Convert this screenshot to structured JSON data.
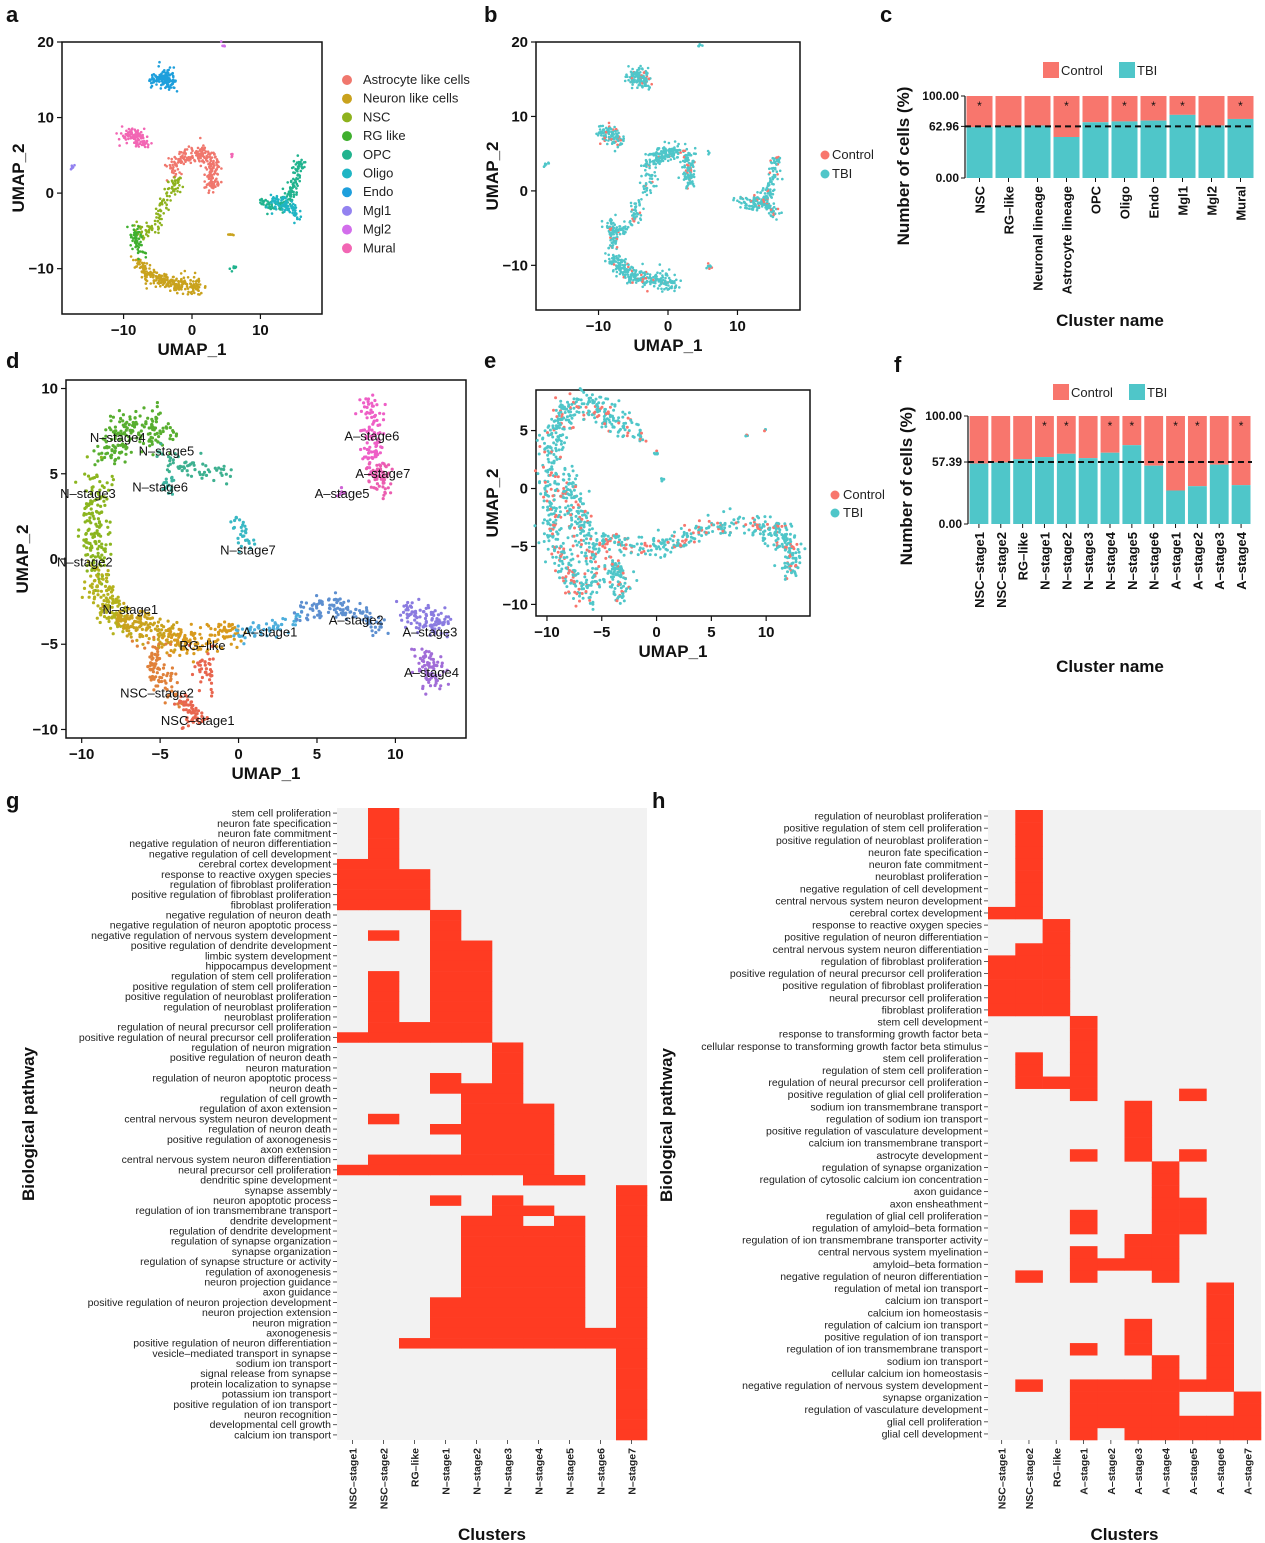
{
  "colors": {
    "control": "#F8766D",
    "tbi": "#4FC6C9",
    "heat_on": "#FF3B22",
    "heat_bg": "#F2F2F2",
    "ab_clusters": {
      "Astrocyte like cells": "#F0776D",
      "Neuron like cells": "#C9A21D",
      "NSC": "#8EB21D",
      "RG like": "#3FAF2E",
      "OPC": "#21B38E",
      "Oligo": "#1FB5C4",
      "Endo": "#1E9FDC",
      "Mgl1": "#9382F0",
      "Mgl2": "#D26DEB",
      "Mural": "#F266B4"
    },
    "d_clusters": {
      "N-stage1": "#C9A21D",
      "N-stage2": "#B5B21E",
      "N-stage3": "#8BB51F",
      "N-stage4": "#57AE2F",
      "N-stage5": "#3DB090",
      "N-stage6": "#3EB4A0",
      "N-stage7": "#39B8C4",
      "RG-like": "#D89A1E",
      "NSC-stage1": "#E8664F",
      "NSC-stage2": "#E0813A",
      "A-stage1": "#4DAEDC",
      "A-stage2": "#5D8FD0",
      "A-stage3": "#8A7BE0",
      "A-stage4": "#A16DD8",
      "A-stage5": "#CF63D6",
      "A-stage6": "#EE5FC6",
      "A-stage7": "#EB5DB0"
    }
  },
  "panel_labels": [
    "a",
    "b",
    "c",
    "d",
    "e",
    "f",
    "g",
    "h"
  ],
  "chart_data": [
    {
      "id": "a",
      "type": "scatter",
      "xlabel": "UMAP_1",
      "ylabel": "UMAP_2",
      "xlim": [
        -19,
        19
      ],
      "ylim": [
        -16,
        20
      ],
      "xticks": [
        "−10",
        "0",
        "10"
      ],
      "xtick_values": [
        -10,
        0,
        10
      ],
      "yticks": [
        "20",
        "10",
        "0",
        "−10"
      ],
      "ytick_values": [
        20,
        10,
        0,
        -10
      ],
      "legend": [
        "Astrocyte like cells",
        "Neuron like cells",
        "NSC",
        "RG like",
        "OPC",
        "Oligo",
        "Endo",
        "Mgl1",
        "Mgl2",
        "Mural"
      ]
    },
    {
      "id": "b",
      "type": "scatter",
      "xlabel": "UMAP_1",
      "ylabel": "UMAP_2",
      "xlim": [
        -19,
        19
      ],
      "ylim": [
        -16,
        20
      ],
      "xticks": [
        "−10",
        "0",
        "10"
      ],
      "xtick_values": [
        -10,
        0,
        10
      ],
      "yticks": [
        "20",
        "10",
        "0",
        "−10"
      ],
      "ytick_values": [
        20,
        10,
        0,
        -10
      ],
      "legend": [
        "Control",
        "TBI"
      ]
    },
    {
      "id": "c",
      "type": "bar",
      "stacked": true,
      "xlabel": "Cluster name",
      "ylabel": "Number of cells (%)",
      "ylim": [
        0,
        100
      ],
      "yticks": [
        "100.00",
        "62.96",
        "0.00"
      ],
      "ytick_values": [
        100,
        62.96,
        0
      ],
      "reference_line": 62.96,
      "legend": [
        "Control",
        "TBI"
      ],
      "categories": [
        "NSC",
        "RG–like",
        "Neuronal lineage",
        "Astrocyte lineage",
        "OPC",
        "Oligo",
        "Endo",
        "Mgl1",
        "Mgl2",
        "Mural"
      ],
      "series": [
        {
          "name": "TBI",
          "values": [
            62,
            63,
            64,
            50,
            68,
            69,
            70,
            77,
            64,
            72
          ]
        },
        {
          "name": "Control",
          "values": [
            38,
            37,
            36,
            50,
            32,
            31,
            30,
            23,
            36,
            28
          ]
        }
      ],
      "significant": [
        true,
        false,
        false,
        true,
        false,
        true,
        true,
        true,
        false,
        true
      ]
    },
    {
      "id": "d",
      "type": "scatter",
      "xlabel": "UMAP_1",
      "ylabel": "UMAP_2",
      "xlim": [
        -11,
        14.5
      ],
      "ylim": [
        -10.5,
        10.5
      ],
      "xticks": [
        "−10",
        "−5",
        "0",
        "5",
        "10"
      ],
      "xtick_values": [
        -10,
        -5,
        0,
        5,
        10
      ],
      "yticks": [
        "10",
        "5",
        "0",
        "−5",
        "−10"
      ],
      "ytick_values": [
        10,
        5,
        0,
        -5,
        -10
      ],
      "cluster_labels": [
        "N–stage4",
        "N–stage5",
        "N–stage6",
        "N–stage3",
        "N–stage2",
        "N–stage7",
        "N–stage1",
        "RG–like",
        "NSC–stage2",
        "NSC–stage1",
        "A–stage1",
        "A–stage2",
        "A–stage3",
        "A–stage4",
        "A–stage5",
        "A–stage6",
        "A–stage7"
      ]
    },
    {
      "id": "e",
      "type": "scatter",
      "xlabel": "UMAP_1",
      "ylabel": "UMAP_2",
      "xlim": [
        -11,
        14
      ],
      "ylim": [
        -11,
        8.5
      ],
      "xticks": [
        "−10",
        "−5",
        "0",
        "5",
        "10"
      ],
      "xtick_values": [
        -10,
        -5,
        0,
        5,
        10
      ],
      "yticks": [
        "5",
        "0",
        "−5",
        "−10"
      ],
      "ytick_values": [
        5,
        0,
        -5,
        -10
      ],
      "legend": [
        "Control",
        "TBI"
      ]
    },
    {
      "id": "f",
      "type": "bar",
      "stacked": true,
      "xlabel": "Cluster name",
      "ylabel": "Number of cells (%)",
      "ylim": [
        0,
        100
      ],
      "yticks": [
        "100.00",
        "57.39",
        "0.00"
      ],
      "ytick_values": [
        100,
        57.39,
        0
      ],
      "reference_line": 57.39,
      "legend": [
        "Control",
        "TBI"
      ],
      "categories": [
        "NSC–stage1",
        "NSC–stage2",
        "RG–like",
        "N–stage1",
        "N–stage2",
        "N–stage3",
        "N–stage4",
        "N–stage5",
        "N–stage6",
        "A–stage1",
        "A–stage2",
        "A–stage3",
        "A–stage4"
      ],
      "series": [
        {
          "name": "TBI",
          "values": [
            56,
            57,
            60,
            62,
            65,
            61,
            66,
            73,
            54,
            31,
            35,
            55,
            36
          ]
        },
        {
          "name": "Control",
          "values": [
            44,
            43,
            40,
            38,
            35,
            39,
            34,
            27,
            46,
            69,
            65,
            45,
            64
          ]
        }
      ],
      "significant": [
        false,
        false,
        false,
        true,
        true,
        false,
        true,
        true,
        false,
        true,
        true,
        false,
        true
      ]
    },
    {
      "id": "g",
      "type": "heatmap",
      "xlabel": "Clusters",
      "ylabel": "Biological pathway",
      "columns": [
        "NSC–stage1",
        "NSC–stage2",
        "RG–like",
        "N–stage1",
        "N–stage2",
        "N–stage3",
        "N–stage4",
        "N–stage5",
        "N–stage6",
        "N–stage7"
      ],
      "rows": [
        "stem cell proliferation",
        "neuron fate specification",
        "neuron fate commitment",
        "negative regulation of neuron differentiation",
        "negative regulation of cell development",
        "cerebral cortex development",
        "response to reactive oxygen species",
        "regulation of fibroblast proliferation",
        "positive regulation of fibroblast proliferation",
        "fibroblast proliferation",
        "negative regulation of neuron death",
        "negative regulation of neuron apoptotic process",
        "negative regulation of nervous system development",
        "positive regulation of dendrite development",
        "limbic system development",
        "hippocampus development",
        "regulation of stem cell proliferation",
        "positive regulation of stem cell proliferation",
        "positive regulation of neuroblast proliferation",
        "regulation of neuroblast proliferation",
        "neuroblast proliferation",
        "regulation of neural precursor cell proliferation",
        "positive regulation of neural precursor cell proliferation",
        "regulation of neuron migration",
        "positive regulation of neuron death",
        "neuron maturation",
        "regulation of neuron apoptotic process",
        "neuron death",
        "regulation of cell growth",
        "regulation of axon extension",
        "central nervous system neuron development",
        "regulation of neuron death",
        "positive regulation of axonogenesis",
        "axon extension",
        "central nervous system neuron differentiation",
        "neural precursor cell proliferation",
        "dendritic spine development",
        "synapse assembly",
        "neuron apoptotic process",
        "regulation of ion transmembrane transport",
        "dendrite development",
        "regulation of dendrite development",
        "regulation of synapse organization",
        "synapse organization",
        "regulation of synapse structure or activity",
        "regulation of axonogenesis",
        "neuron projection guidance",
        "axon guidance",
        "positive regulation of neuron projection development",
        "neuron projection extension",
        "neuron migration",
        "axonogenesis",
        "positive regulation of neuron differentiation",
        "vesicle–mediated transport in synapse",
        "sodium ion transport",
        "signal release from synapse",
        "protein localization to synapse",
        "potassium ion transport",
        "positive regulation of ion transport",
        "neuron recognition",
        "developmental cell growth",
        "calcium ion transport"
      ],
      "active": [
        [
          1
        ],
        [
          1
        ],
        [
          1
        ],
        [
          1
        ],
        [
          1
        ],
        [
          0,
          1
        ],
        [
          0,
          1,
          2
        ],
        [
          0,
          1,
          2
        ],
        [
          0,
          1,
          2
        ],
        [
          0,
          1,
          2
        ],
        [
          3
        ],
        [
          3
        ],
        [
          1,
          3
        ],
        [
          3,
          4
        ],
        [
          3,
          4
        ],
        [
          3,
          4
        ],
        [
          1,
          3,
          4
        ],
        [
          1,
          3,
          4
        ],
        [
          1,
          3,
          4
        ],
        [
          1,
          3,
          4
        ],
        [
          1,
          3,
          4
        ],
        [
          1,
          2,
          3,
          4
        ],
        [
          0,
          1,
          2,
          3,
          4
        ],
        [
          5
        ],
        [
          5
        ],
        [
          5
        ],
        [
          3,
          5
        ],
        [
          3,
          4,
          5
        ],
        [
          4,
          5
        ],
        [
          4,
          5,
          6
        ],
        [
          1,
          4,
          5,
          6
        ],
        [
          3,
          4,
          5,
          6
        ],
        [
          4,
          5,
          6
        ],
        [
          4,
          5,
          6
        ],
        [
          1,
          2,
          3,
          4,
          5,
          6
        ],
        [
          0,
          1,
          2,
          3,
          4,
          5,
          6
        ],
        [
          6,
          7
        ],
        [
          9
        ],
        [
          3,
          5,
          9
        ],
        [
          5,
          6,
          9
        ],
        [
          4,
          5,
          7,
          9
        ],
        [
          4,
          5,
          6,
          7,
          9
        ],
        [
          4,
          5,
          6,
          7,
          9
        ],
        [
          4,
          5,
          6,
          7,
          9
        ],
        [
          4,
          5,
          6,
          7,
          9
        ],
        [
          4,
          5,
          6,
          7,
          9
        ],
        [
          4,
          5,
          6,
          7,
          9
        ],
        [
          4,
          5,
          6,
          7,
          9
        ],
        [
          3,
          4,
          5,
          6,
          7,
          9
        ],
        [
          3,
          4,
          5,
          6,
          7,
          9
        ],
        [
          3,
          4,
          5,
          6,
          7,
          9
        ],
        [
          3,
          4,
          5,
          6,
          7,
          8,
          9
        ],
        [
          2,
          3,
          4,
          5,
          6,
          7,
          8,
          9
        ],
        [
          9
        ],
        [
          9
        ],
        [
          9
        ],
        [
          9
        ],
        [
          9
        ],
        [
          9
        ],
        [
          9
        ],
        [
          9
        ],
        [
          9
        ]
      ]
    },
    {
      "id": "h",
      "type": "heatmap",
      "xlabel": "Clusters",
      "ylabel": "Biological pathway",
      "columns": [
        "NSC–stage1",
        "NSC–stage2",
        "RG–like",
        "A–stage1",
        "A–stage2",
        "A–stage3",
        "A–stage4",
        "A–stage5",
        "A–stage6",
        "A–stage7"
      ],
      "rows": [
        "regulation of neuroblast proliferation",
        "positive regulation of stem cell proliferation",
        "positive regulation of neuroblast proliferation",
        "neuron fate specification",
        "neuron fate commitment",
        "neuroblast proliferation",
        "negative regulation of cell development",
        "central nervous system neuron development",
        "cerebral cortex development",
        "response to reactive oxygen species",
        "positive regulation of neuron differentiation",
        "central nervous system neuron differentiation",
        "regulation of fibroblast proliferation",
        "positive regulation of neural precursor cell proliferation",
        "positive regulation of fibroblast proliferation",
        "neural precursor cell proliferation",
        "fibroblast proliferation",
        "stem cell development",
        "response to transforming growth factor beta",
        "cellular response to transforming growth factor beta stimulus",
        "stem cell proliferation",
        "regulation of stem cell proliferation",
        "regulation of neural precursor cell proliferation",
        "positive regulation of glial cell proliferation",
        "sodium ion transmembrane transport",
        "regulation of sodium ion transport",
        "positive regulation of vasculature development",
        "calcium ion transmembrane transport",
        "astrocyte development",
        "regulation of synapse organization",
        "regulation of cytosolic calcium ion concentration",
        "axon guidance",
        "axon ensheathment",
        "regulation of glial cell proliferation",
        "regulation of amyloid–beta formation",
        "regulation of ion transmembrane transporter activity",
        "central nervous system myelination",
        "amyloid–beta formation",
        "negative regulation of neuron differentiation",
        "regulation of metal ion transport",
        "calcium ion transport",
        "calcium ion homeostasis",
        "regulation of calcium ion transport",
        "positive regulation of ion transport",
        "regulation of ion transmembrane transport",
        "sodium ion transport",
        "cellular calcium ion homeostasis",
        "negative regulation of nervous system development",
        "synapse organization",
        "regulation of vasculature development",
        "glial cell proliferation",
        "glial cell development"
      ],
      "active": [
        [
          1
        ],
        [
          1
        ],
        [
          1
        ],
        [
          1
        ],
        [
          1
        ],
        [
          1
        ],
        [
          1
        ],
        [
          1
        ],
        [
          0,
          1
        ],
        [
          2
        ],
        [
          2
        ],
        [
          1,
          2
        ],
        [
          0,
          1,
          2
        ],
        [
          0,
          1,
          2
        ],
        [
          0,
          1,
          2
        ],
        [
          0,
          1,
          2
        ],
        [
          0,
          1,
          2
        ],
        [
          3
        ],
        [
          3
        ],
        [
          3
        ],
        [
          1,
          3
        ],
        [
          1,
          3
        ],
        [
          1,
          2,
          3
        ],
        [
          3,
          7
        ],
        [
          5
        ],
        [
          5
        ],
        [
          5
        ],
        [
          5
        ],
        [
          3,
          5,
          7
        ],
        [
          6
        ],
        [
          6
        ],
        [
          6
        ],
        [
          6,
          7
        ],
        [
          3,
          6,
          7
        ],
        [
          3,
          6,
          7
        ],
        [
          5,
          6
        ],
        [
          3,
          5,
          6
        ],
        [
          3,
          4,
          5,
          6
        ],
        [
          1,
          3,
          6
        ],
        [
          8
        ],
        [
          8
        ],
        [
          8
        ],
        [
          5,
          8
        ],
        [
          5,
          8
        ],
        [
          3,
          5,
          8
        ],
        [
          6,
          8
        ],
        [
          6,
          8
        ],
        [
          1,
          3,
          4,
          5,
          6,
          7,
          8
        ],
        [
          3,
          4,
          5,
          6,
          9
        ],
        [
          3,
          4,
          5,
          6,
          9
        ],
        [
          3,
          4,
          5,
          6,
          7,
          8,
          9
        ],
        [
          3,
          5,
          6,
          7,
          8,
          9
        ]
      ]
    }
  ]
}
